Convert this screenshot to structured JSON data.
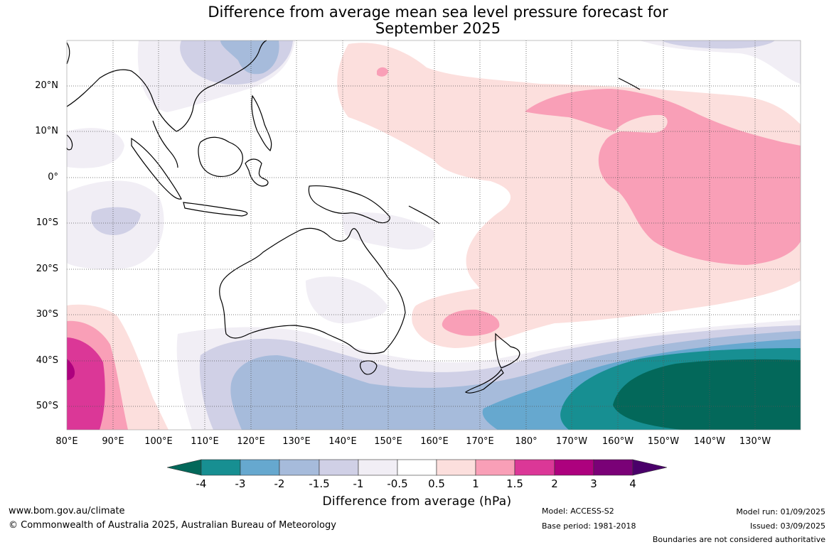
{
  "title_line1": "Difference from average mean sea level pressure forecast for",
  "title_line2": "September 2025",
  "lat_labels": [
    "20°N",
    "10°N",
    "0°",
    "10°S",
    "20°S",
    "30°S",
    "40°S",
    "50°S"
  ],
  "lon_labels": [
    "80°E",
    "90°E",
    "100°E",
    "110°E",
    "120°E",
    "130°E",
    "140°E",
    "150°E",
    "160°E",
    "170°E",
    "180°",
    "170°W",
    "160°W",
    "150°W",
    "140°W",
    "130°W"
  ],
  "colorbar": {
    "ticks": [
      "-4",
      "-3",
      "-2",
      "-1.5",
      "-1",
      "-0.5",
      "0.5",
      "1",
      "1.5",
      "2",
      "3",
      "4"
    ],
    "colors": {
      "lt_-4": "#03685a",
      "-4_-3": "#178f92",
      "-3_-2": "#66a8cf",
      "-2_-1.5": "#a6bbdb",
      "-1.5_-1": "#d0d0e6",
      "-1_-0.5": "#f1eef5",
      "-0.5_0.5": "#ffffff",
      "0.5_1": "#fcdfdd",
      "1_1.5": "#f99fb7",
      "1.5_2": "#db3797",
      "2_3": "#ad017e",
      "3_4": "#7a0177",
      "gt_4": "#4a006a"
    },
    "label": "Difference from average (hPa)"
  },
  "footer": {
    "website": "www.bom.gov.au/climate",
    "copyright": "© Commonwealth of Australia 2025, Australian Bureau of Meteorology",
    "model": "Model: ACCESS-S2",
    "base_period": "Base period: 1981-2018",
    "model_run": "Model run: 01/09/2025",
    "issued": "Issued: 03/09/2025",
    "disclaimer": "Boundaries are not considered authoritative"
  }
}
